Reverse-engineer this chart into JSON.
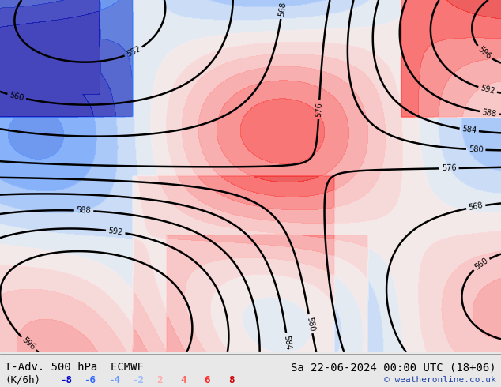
{
  "title_left": "T-Adv. 500 hPa  ECMWF",
  "title_right": "Sa 22-06-2024 00:00 UTC (18+06)",
  "subtitle_left": "(K/6h)",
  "legend_values": [
    "-8",
    "-6",
    "-4",
    "-2",
    "2",
    "4",
    "6",
    "8"
  ],
  "legend_colors": [
    "#0000cc",
    "#3366ff",
    "#6699ff",
    "#99bbff",
    "#ffaaaa",
    "#ff6666",
    "#ff2222",
    "#cc0000"
  ],
  "copyright": "© weatheronline.co.uk",
  "bg_color": "#e8e8e8",
  "map_bg": "#f0f0f0",
  "title_fontsize": 10,
  "legend_fontsize": 9,
  "copyright_fontsize": 8,
  "figsize": [
    6.34,
    4.9
  ],
  "dpi": 100
}
